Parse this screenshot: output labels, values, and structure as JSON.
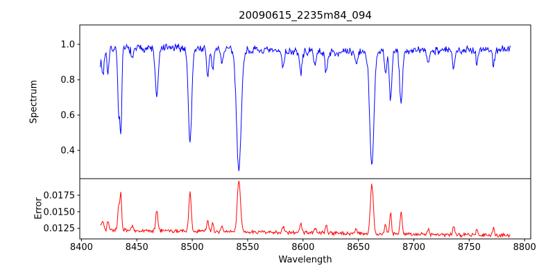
{
  "chart_data": {
    "type": "line",
    "title": "20090615_2235m84_094",
    "xlabel": "Wavelength",
    "xlim": [
      8398.5,
      8805.5
    ],
    "xticks": [
      8400,
      8450,
      8500,
      8550,
      8600,
      8650,
      8700,
      8750,
      8800
    ],
    "x_start": 8417,
    "x_end": 8787,
    "n_points": 640,
    "noise_seed": 7,
    "frame_color": "#000000",
    "panels": [
      {
        "name": "spectrum",
        "ylabel": "Spectrum",
        "color": "#0000ff",
        "ylim": [
          0.24,
          1.11
        ],
        "yticks": [
          0.4,
          0.6,
          0.8,
          1.0
        ],
        "ytick_decimals": 1,
        "continuum": 0.965,
        "noise": 0.028,
        "absorption_lines": [
          {
            "c": 8416.5,
            "d": 0.08,
            "w": 3.0
          },
          {
            "c": 8419.5,
            "d": 0.1,
            "w": 0.8
          },
          {
            "c": 8424.0,
            "d": 0.13,
            "w": 0.9
          },
          {
            "c": 8433.5,
            "d": 0.33,
            "w": 0.8
          },
          {
            "c": 8435.5,
            "d": 0.5,
            "w": 0.9
          },
          {
            "c": 8446.0,
            "d": 0.07,
            "w": 1.0
          },
          {
            "c": 8468.0,
            "d": 0.28,
            "w": 1.4
          },
          {
            "c": 8498.0,
            "d": 0.55,
            "w": 1.5
          },
          {
            "c": 8514.0,
            "d": 0.16,
            "w": 1.1
          },
          {
            "c": 8518.5,
            "d": 0.12,
            "w": 1.0
          },
          {
            "c": 8527.0,
            "d": 0.08,
            "w": 1.0
          },
          {
            "c": 8542.1,
            "d": 0.7,
            "w": 2.1
          },
          {
            "c": 8582.0,
            "d": 0.09,
            "w": 1.0
          },
          {
            "c": 8598.0,
            "d": 0.13,
            "w": 1.1
          },
          {
            "c": 8611.0,
            "d": 0.07,
            "w": 1.0
          },
          {
            "c": 8621.0,
            "d": 0.12,
            "w": 1.1
          },
          {
            "c": 8648.0,
            "d": 0.07,
            "w": 1.0
          },
          {
            "c": 8662.1,
            "d": 0.68,
            "w": 1.9
          },
          {
            "c": 8674.5,
            "d": 0.14,
            "w": 0.9
          },
          {
            "c": 8679.0,
            "d": 0.28,
            "w": 1.1
          },
          {
            "c": 8688.5,
            "d": 0.3,
            "w": 1.3
          },
          {
            "c": 8713.0,
            "d": 0.08,
            "w": 1.0
          },
          {
            "c": 8736.0,
            "d": 0.12,
            "w": 1.1
          },
          {
            "c": 8757.0,
            "d": 0.08,
            "w": 0.9
          },
          {
            "c": 8772.0,
            "d": 0.1,
            "w": 0.9
          }
        ]
      },
      {
        "name": "error",
        "ylabel": "Error",
        "color": "#ff0000",
        "ylim": [
          0.0109,
          0.02
        ],
        "yticks": [
          0.0125,
          0.015,
          0.0175
        ],
        "ytick_decimals": 4,
        "base_start": 0.01225,
        "base_end": 0.0114,
        "noise": 0.00035,
        "error_peak_scale": 0.011
      }
    ]
  }
}
